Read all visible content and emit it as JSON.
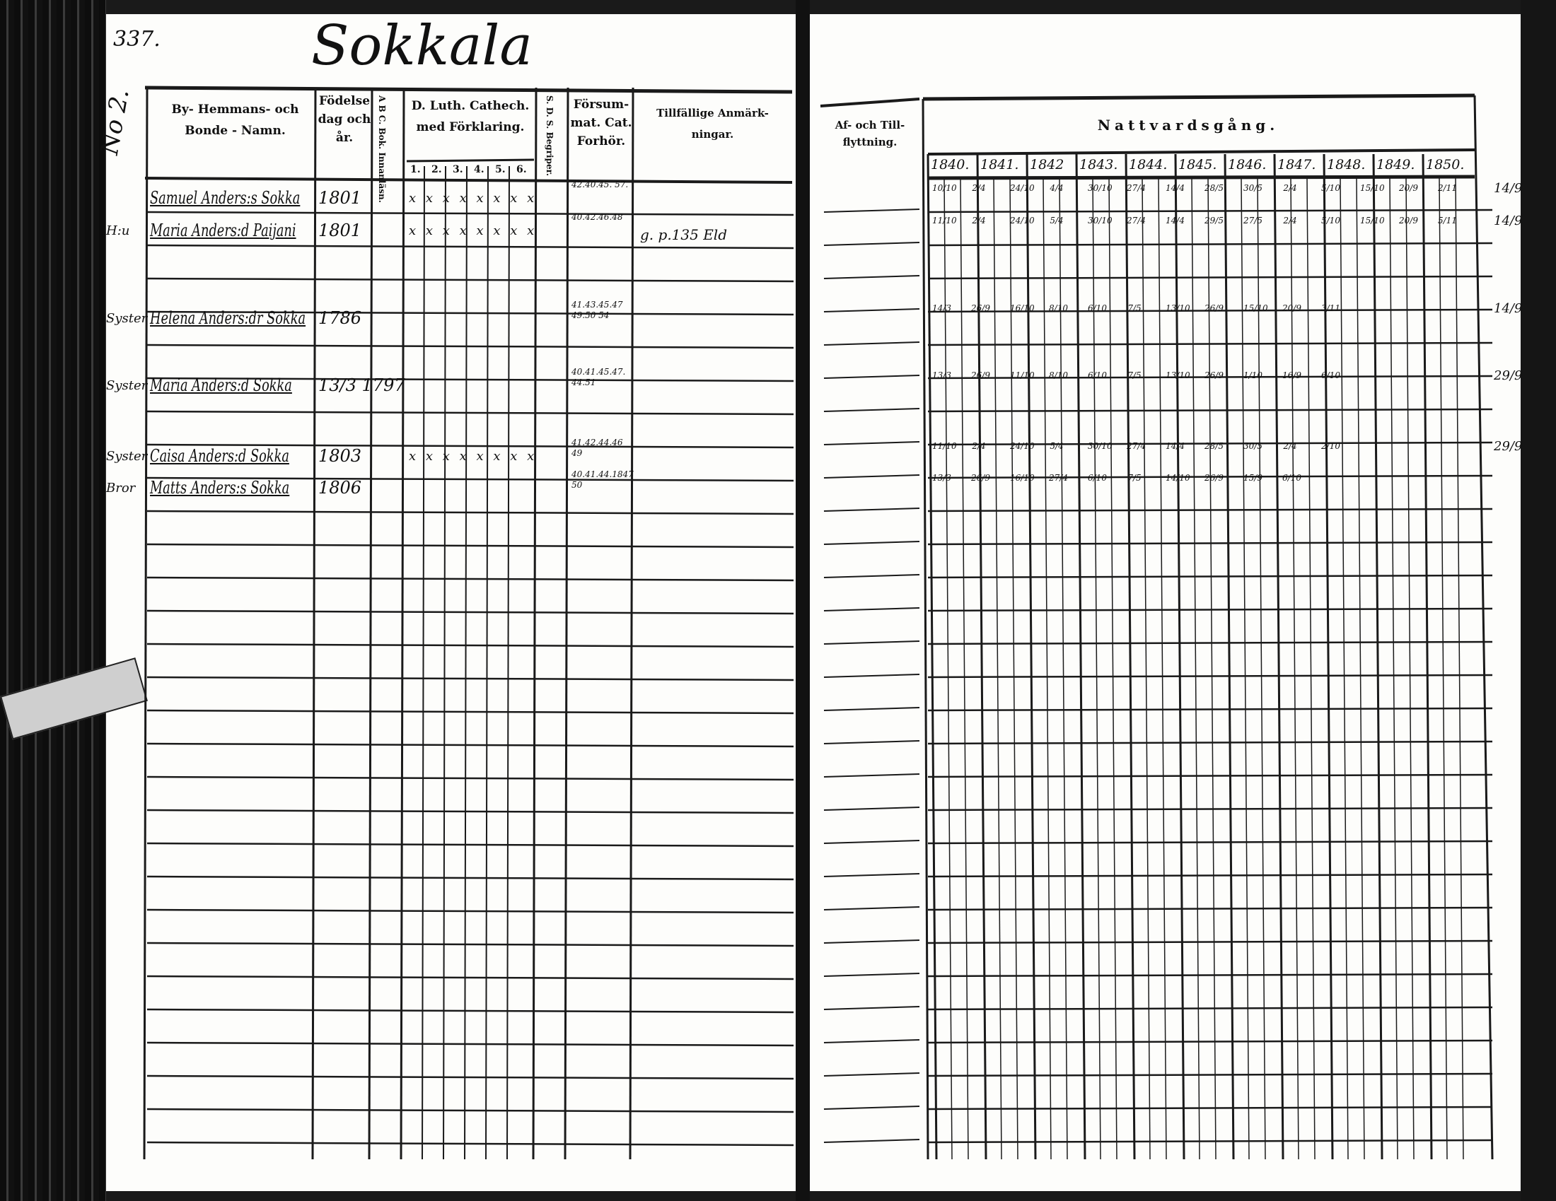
{
  "page_number": "337.",
  "village_title": "Sokkala",
  "household_number": "No 2.",
  "left_headers": {
    "name": "By- Hemmans- och Bonde - Namn.",
    "birth": "Födelse dag och år.",
    "abc": "A B C. Bok. Innanläsn.",
    "catechism": "D. Luth. Cathech. med Förklaring.",
    "catechism_parts": [
      "1.",
      "2.",
      "3.",
      "4.",
      "5.",
      "6."
    ],
    "sds": "S. D. S. Begriper.",
    "missed": "Försum- mat. Cat. Forhör.",
    "notes": "Tillfällige Anmärk- ningar."
  },
  "right_headers": {
    "moves": "Af- och Till- flyttning.",
    "communion": "Nattvardsgång.",
    "years": [
      "1840.",
      "1841.",
      "1842",
      "1843.",
      "1844.",
      "1845.",
      "1846.",
      "1847.",
      "1848.",
      "1849.",
      "1850."
    ]
  },
  "persons": [
    {
      "relation": "",
      "name": "Samuel Anders:s Sokka",
      "birth": "1801",
      "marks": "x x x x x x x x",
      "missed": "42.40.45. 57.",
      "note": "",
      "communion": [
        "10/10",
        "2/4",
        "24/10",
        "4/4",
        "30/10",
        "27/4",
        "14/4",
        "28/5",
        "30/5",
        "2/4",
        "5/10",
        "15/10",
        "20/9",
        "2/11"
      ],
      "margin": "14/9"
    },
    {
      "relation": "H:u",
      "name": "Maria Anders:d Paijani",
      "birth": "1801",
      "marks": "x x x x x x x x",
      "missed": "40.42.46.48",
      "note": "g. p.135 Eld",
      "communion": [
        "11/10",
        "2/4",
        "24/10",
        "5/4",
        "30/10",
        "27/4",
        "14/4",
        "29/5",
        "27/5",
        "2/4",
        "5/10",
        "15/10",
        "20/9",
        "5/11"
      ],
      "margin": "14/9"
    },
    {
      "relation": "Syster",
      "name": "Helena Anders:dr Sokka",
      "birth": "1786",
      "marks": "",
      "missed": "41.43.45.47 49.50 54",
      "note": "",
      "communion": [
        "14/3",
        "26/9",
        "16/10",
        "8/10",
        "6/10",
        "7/5",
        "13/10",
        "26/9",
        "15/10",
        "20/9",
        "3/11"
      ],
      "margin": "14/9"
    },
    {
      "relation": "Syster",
      "name": "Maria Anders:d Sokka",
      "birth": "13/3 1797",
      "marks": "",
      "missed": "40.41.45.47. 44.51",
      "note": "",
      "communion": [
        "13/3",
        "26/9",
        "11/10",
        "8/10",
        "6/10",
        "7/5",
        "13/10",
        "26/9",
        "1/10",
        "16/9",
        "6/10"
      ],
      "margin": "29/9"
    },
    {
      "relation": "Syster",
      "name": "Caisa Anders:d Sokka",
      "birth": "1803",
      "marks": "x x x x x x x x",
      "missed": "41.42.44.46 49",
      "note": "",
      "communion": [
        "11/10",
        "2/4",
        "24/10",
        "5/4",
        "30/10",
        "27/4",
        "14/4",
        "28/5",
        "30/5",
        "2/4",
        "2/10"
      ],
      "margin": "29/9"
    },
    {
      "relation": "Bror",
      "name": "Matts Anders:s Sokka",
      "birth": "1806",
      "marks": "",
      "missed": "40.41.44.1847 50",
      "note": "",
      "communion": [
        "13/3",
        "26/9",
        "16/10",
        "27/4",
        "6/10",
        "7/5",
        "14/10",
        "26/9",
        "15/9",
        "6/10"
      ],
      "margin": ""
    }
  ]
}
